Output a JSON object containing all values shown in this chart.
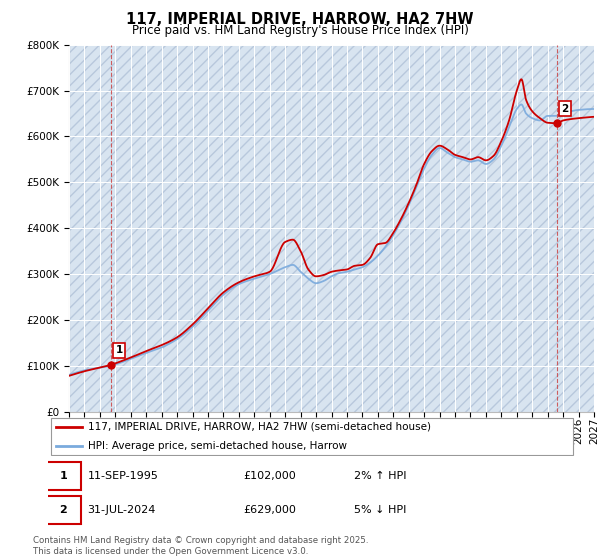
{
  "title": "117, IMPERIAL DRIVE, HARROW, HA2 7HW",
  "subtitle": "Price paid vs. HM Land Registry's House Price Index (HPI)",
  "ylim": [
    0,
    800000
  ],
  "xlim_start": 1993,
  "xlim_end": 2027,
  "price_paid_points": [
    [
      1995.7,
      102000
    ],
    [
      2024.58,
      629000
    ]
  ],
  "price_paid_labels": [
    "1",
    "2"
  ],
  "hpi_line_color": "#7aaadd",
  "price_line_color": "#cc0000",
  "point_color": "#cc0000",
  "background_color": "#d8e4f0",
  "hatch_color": "#b8c8dc",
  "grid_color": "#ffffff",
  "vline_color": "#cc4444",
  "legend_label_price": "117, IMPERIAL DRIVE, HARROW, HA2 7HW (semi-detached house)",
  "legend_label_hpi": "HPI: Average price, semi-detached house, Harrow",
  "annotation_1_date": "11-SEP-1995",
  "annotation_1_price": "£102,000",
  "annotation_1_hpi": "2% ↑ HPI",
  "annotation_2_date": "31-JUL-2024",
  "annotation_2_price": "£629,000",
  "annotation_2_hpi": "5% ↓ HPI",
  "footer": "Contains HM Land Registry data © Crown copyright and database right 2025.\nThis data is licensed under the Open Government Licence v3.0.",
  "title_fontsize": 10.5,
  "subtitle_fontsize": 8.5,
  "tick_fontsize": 7.5,
  "legend_fontsize": 7.5
}
